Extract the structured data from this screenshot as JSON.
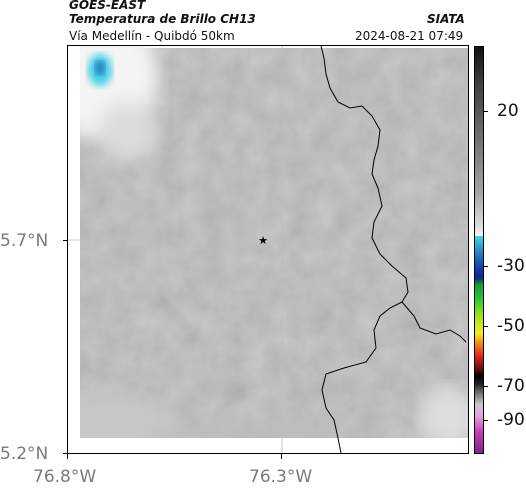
{
  "header": {
    "source": "GOES-EAST",
    "product": "Temperatura de Brillo CH13",
    "region": "Vía Medellín - Quibdó 50km",
    "org": "SIATA",
    "datetime": "2024-08-21 07:49"
  },
  "axes": {
    "lat_ticks": [
      "5.7°N",
      "5.2°N"
    ],
    "lon_ticks": [
      "76.8°W",
      "76.3°W"
    ]
  },
  "colorbar": {
    "labels": [
      "20",
      "-30",
      "-50",
      "-70",
      "-90"
    ],
    "colors": {
      "warm_gray_top": "#2b2b2b",
      "warm_gray_mid": "#a6a6a6",
      "cyan": "#2fd6e8",
      "blue": "#1433a8",
      "green": "#22c93a",
      "yellow": "#f2ee1e",
      "red": "#e8261a",
      "black": "#000000",
      "magenta": "#c23bb3"
    }
  },
  "map": {
    "marker": "star-icon",
    "field_base_color": "#808080",
    "cloud_color": "#f3f3f3",
    "cold_top_color": "#35c8e8"
  }
}
